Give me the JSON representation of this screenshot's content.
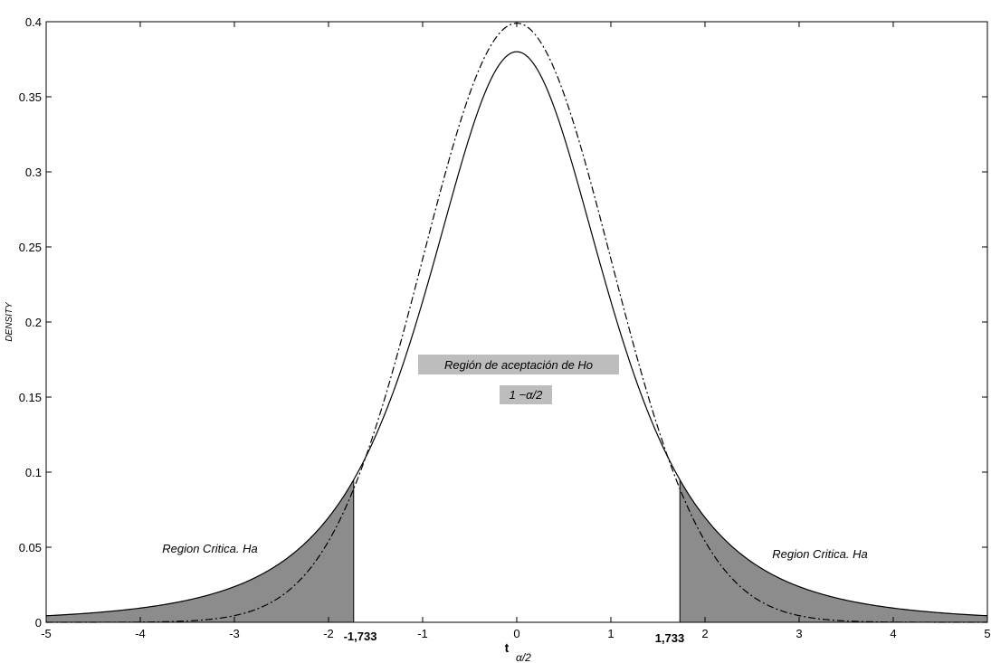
{
  "chart_data": {
    "type": "area",
    "title": "",
    "xlabel": "t",
    "xlabel_subscript": "α/2",
    "ylabel": "DENSITY",
    "xlim": [
      -5,
      5
    ],
    "ylim": [
      0,
      0.4
    ],
    "x_ticks": [
      -5,
      -4,
      -3,
      -2,
      -1,
      0,
      1,
      2,
      3,
      4,
      5
    ],
    "y_ticks": [
      0,
      0.05,
      0.1,
      0.15,
      0.2,
      0.25,
      0.3,
      0.35,
      0.4
    ],
    "x_tick_labels": [
      "-5",
      "-4",
      "-3",
      "-2",
      "-1",
      "0",
      "1",
      "2",
      "3",
      "4",
      "5"
    ],
    "y_tick_labels": [
      "0",
      "0.05",
      "0.1",
      "0.15",
      "0.2",
      "0.25",
      "0.3",
      "0.35",
      "0.4"
    ],
    "grid": false,
    "series": [
      {
        "style": "solid",
        "distribution": "student-t",
        "df": 3,
        "peak": 0.38
      },
      {
        "style": "dash-dot",
        "distribution": "normal",
        "peak": 0.399
      }
    ],
    "critical_values": [
      -1.733,
      1.733
    ],
    "critical_value_labels": [
      "-1,733",
      "1,733"
    ],
    "annotations": {
      "critical_left": "Region Critica. Ha",
      "critical_right": "Region Critica. Ha",
      "acceptance_title": "Región de aceptación de Ho",
      "acceptance_value": "1 −α/2"
    },
    "colors": {
      "shade": "#8c8c8c",
      "label_box": "#bdbdbd",
      "line": "#000000"
    }
  }
}
